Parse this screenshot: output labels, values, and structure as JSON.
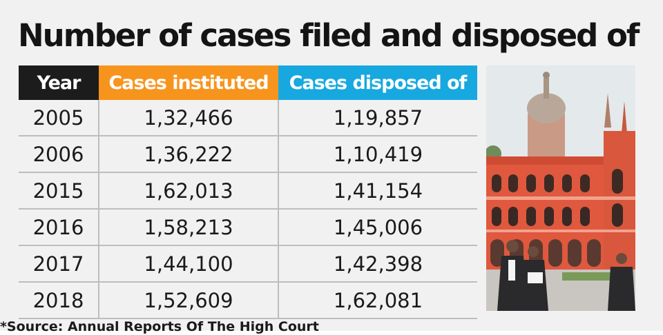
{
  "title": "Number of cases filed and disposed of",
  "source": "*Source: Annual Reports Of The High Court",
  "colors": {
    "header_year": "#1c1c1c",
    "header_instituted": "#f7941d",
    "header_disposed": "#17a8e0",
    "building": "#e0583e"
  },
  "chart_data": {
    "type": "table",
    "title": "Number of cases filed and disposed of",
    "columns": [
      "Year",
      "Cases instituted",
      "Cases disposed of"
    ],
    "rows": [
      {
        "year": "2005",
        "instituted": "1,32,466",
        "disposed": "1,19,857"
      },
      {
        "year": "2006",
        "instituted": "1,36,222",
        "disposed": "1,10,419"
      },
      {
        "year": "2015",
        "instituted": "1,62,013",
        "disposed": "1,41,154"
      },
      {
        "year": "2016",
        "instituted": "1,58,213",
        "disposed": "1,45,006"
      },
      {
        "year": "2017",
        "instituted": "1,44,100",
        "disposed": "1,42,398"
      },
      {
        "year": "2018",
        "instituted": "1,52,609",
        "disposed": "1,62,081"
      }
    ]
  }
}
